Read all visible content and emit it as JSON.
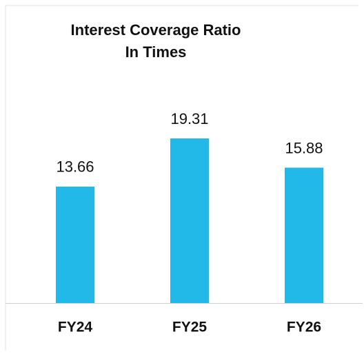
{
  "chart_data": {
    "type": "bar",
    "title": "Interest Coverage Ratio",
    "subtitle": "In Times",
    "categories": [
      "FY24",
      "FY25",
      "FY26"
    ],
    "values": [
      13.66,
      19.31,
      15.88
    ],
    "color": "#22b8e8"
  }
}
